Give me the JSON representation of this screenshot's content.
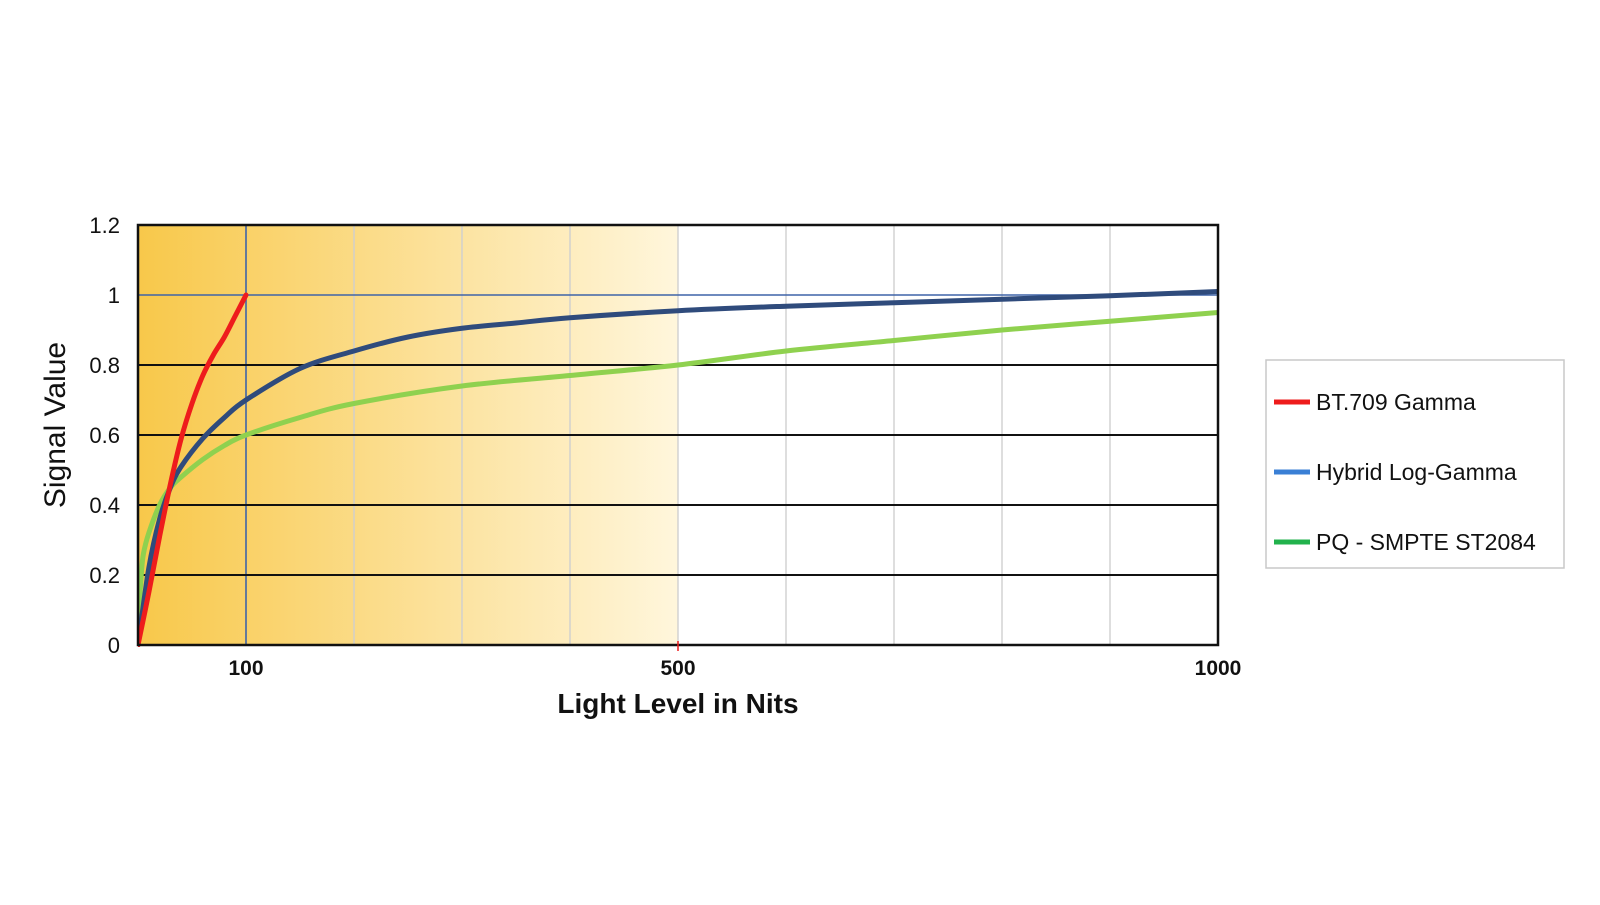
{
  "chart_data": {
    "type": "line",
    "title": "",
    "xlabel": "Light Level in Nits",
    "ylabel": "Signal Value",
    "xlim": [
      0,
      1000
    ],
    "ylim": [
      0,
      1.2
    ],
    "x_ticks": [
      100,
      500,
      1000
    ],
    "x_tick_labels": [
      "100",
      "500",
      "1000"
    ],
    "y_ticks": [
      0,
      0.2,
      0.4,
      0.6,
      0.8,
      1,
      1.2
    ],
    "y_tick_labels": [
      "0",
      "0.2",
      "0.4",
      "0.6",
      "0.8",
      "1",
      "1.2"
    ],
    "grid": true,
    "background_highlight": {
      "from": 0,
      "to": 500,
      "color_start": "#f8c84a",
      "color_end": "#fff6dc"
    },
    "legend_position": "right",
    "series": [
      {
        "name": "BT.709 Gamma",
        "color": "#ee1c1c",
        "x": [
          0,
          10,
          20,
          30,
          40,
          50,
          60,
          70,
          80,
          90,
          100
        ],
        "y": [
          0,
          0.15,
          0.31,
          0.46,
          0.59,
          0.69,
          0.77,
          0.83,
          0.88,
          0.94,
          1.0
        ]
      },
      {
        "name": "Hybrid Log-Gamma",
        "color": "#2f4b7c",
        "legend_color": "#3a7fd5",
        "x": [
          0,
          10,
          20,
          30,
          40,
          60,
          80,
          100,
          150,
          200,
          250,
          300,
          350,
          400,
          500,
          600,
          700,
          800,
          900,
          1000
        ],
        "y": [
          0,
          0.22,
          0.36,
          0.45,
          0.51,
          0.59,
          0.65,
          0.7,
          0.79,
          0.84,
          0.88,
          0.905,
          0.92,
          0.935,
          0.955,
          0.968,
          0.978,
          0.988,
          0.998,
          1.01
        ]
      },
      {
        "name": "PQ - SMPTE ST2084",
        "color": "#8fd14f",
        "legend_color": "#22b24c",
        "x": [
          0,
          1,
          3,
          5,
          10,
          20,
          30,
          40,
          60,
          80,
          100,
          150,
          200,
          300,
          400,
          500,
          600,
          700,
          800,
          900,
          1000
        ],
        "y": [
          0,
          0.1,
          0.2,
          0.26,
          0.32,
          0.4,
          0.45,
          0.48,
          0.53,
          0.57,
          0.6,
          0.65,
          0.69,
          0.74,
          0.77,
          0.8,
          0.84,
          0.87,
          0.9,
          0.925,
          0.95
        ]
      }
    ]
  }
}
